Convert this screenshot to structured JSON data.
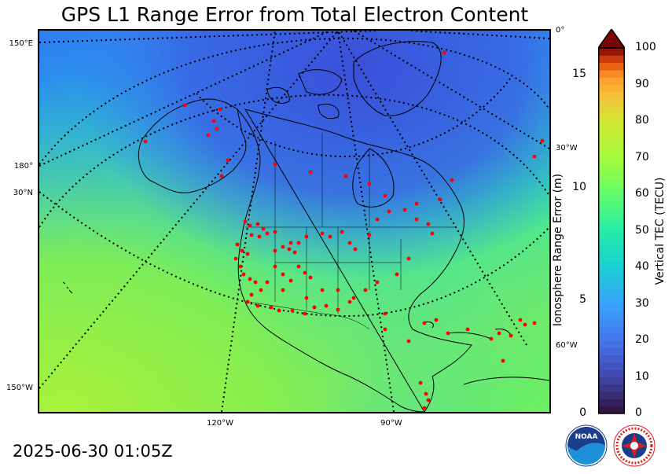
{
  "title": "GPS L1 Range Error from Total Electron Content",
  "timestamp": "2025-06-30 01:05Z",
  "map": {
    "projection": "polar-stereographic",
    "fill_colormap": "turbo-like TEC",
    "lat_labels_left": [
      "150°E",
      "180°",
      "30°N",
      "150°W"
    ],
    "lon_labels_right": [
      "0°",
      "30°W",
      "60°W"
    ],
    "lon_labels_bottom": [
      "120°W",
      "90°W"
    ],
    "gridline_style": "dotted",
    "station_marker_color": "#ff0000"
  },
  "colorbar": {
    "right_label": "Vertical TEC (TECU)",
    "left_label": "Ionosphere Range Error (m)",
    "right_ticks": [
      "0",
      "10",
      "20",
      "30",
      "40",
      "50",
      "60",
      "70",
      "80",
      "90",
      "100"
    ],
    "left_ticks": [
      "0",
      "5",
      "10",
      "15"
    ],
    "tec_range": [
      0,
      100
    ],
    "range_error_range": [
      0,
      16.2
    ],
    "extend": "max"
  },
  "logos": {
    "noaa_text": "NOAA",
    "nws_text": "NATIONAL WEATHER SERVICE"
  }
}
